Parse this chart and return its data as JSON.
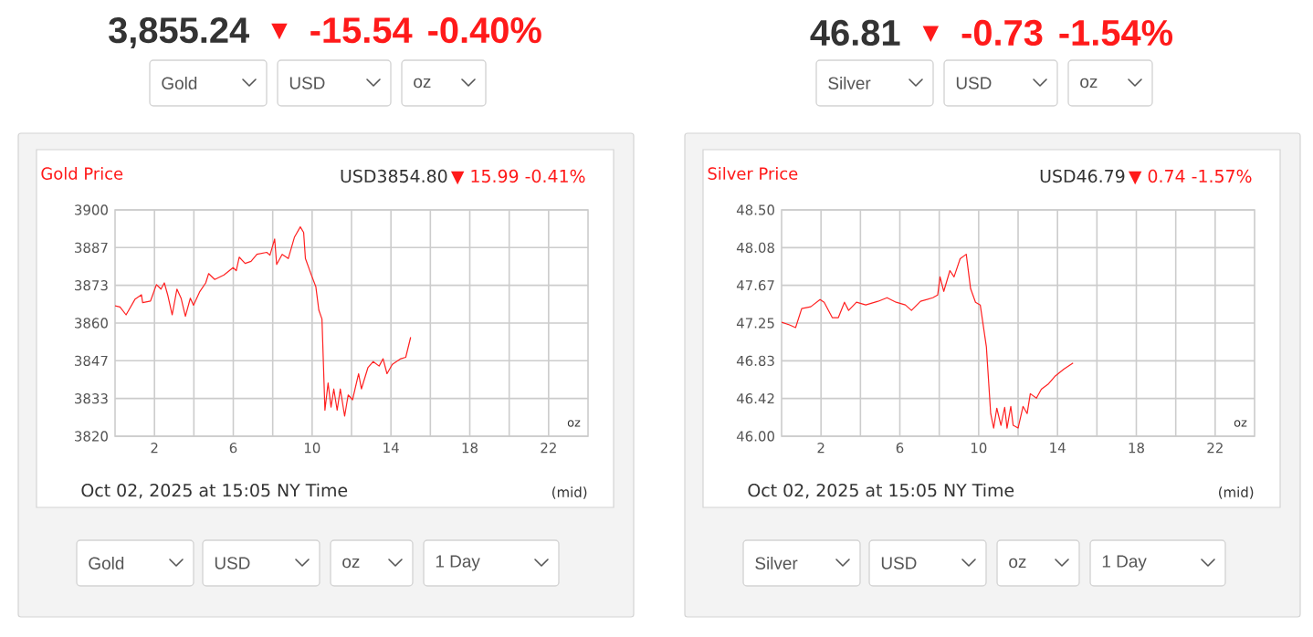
{
  "chart_data": [
    {
      "type": "line",
      "title": "Gold Price",
      "subtitle": "USD3854.80",
      "xlabel": "Oct 02, 2025 at 15:05 NY Time",
      "annotations": [
        "3,855.24",
        "▼",
        "-15.54",
        "-0.40%",
        "Gold",
        "USD",
        "oz",
        "▼ 15.99 -0.41%",
        "oz",
        "(mid)",
        "Gold",
        "USD",
        "oz",
        "1 Day"
      ],
      "color": "#ff2020",
      "grid": true,
      "xlim": [
        0,
        24
      ],
      "xticks": [
        2,
        {
          "value": 4,
          "label": null
        },
        6,
        {
          "value": 8,
          "label": null
        },
        10,
        {
          "value": 12,
          "label": null
        },
        14,
        {
          "value": 16,
          "label": null
        },
        18,
        {
          "value": 20,
          "label": null
        },
        22
      ],
      "ylim": [
        3820,
        3900
      ],
      "yticks": [
        3820,
        {
          "value": 3833.33,
          "label": "3833"
        },
        {
          "value": 3846.67,
          "label": "3847"
        },
        3860,
        {
          "value": 3873.33,
          "label": "3873"
        },
        {
          "value": 3886.67,
          "label": "3887"
        },
        3900
      ],
      "x": [
        0,
        0.25,
        0.56,
        1.02,
        1.34,
        1.4,
        1.8,
        2.1,
        2.33,
        2.5,
        2.67,
        2.9,
        3.14,
        3.35,
        3.57,
        3.82,
        3.98,
        4.29,
        4.6,
        4.75,
        5.06,
        5.53,
        5.99,
        6.15,
        6.3,
        6.6,
        6.9,
        7.2,
        7.7,
        7.86,
        8.1,
        8.2,
        8.48,
        8.79,
        9.1,
        9.4,
        9.57,
        9.66,
        9.97,
        10.19,
        10.34,
        10.5,
        10.65,
        10.81,
        10.96,
        11.1,
        11.27,
        11.43,
        11.65,
        11.83,
        12.05,
        12.36,
        12.5,
        12.83,
        13.1,
        13.4,
        13.6,
        13.8,
        14.07,
        14.5,
        14.75,
        15.0
      ],
      "values": [
        3866.1,
        3865.7,
        3862.9,
        3868.5,
        3870,
        3867.2,
        3867.8,
        3873.6,
        3872,
        3874.2,
        3870,
        3862.9,
        3872,
        3868.8,
        3862.4,
        3868.8,
        3866.3,
        3871,
        3874.2,
        3877.5,
        3875.4,
        3877,
        3879.6,
        3878.5,
        3883.3,
        3881.1,
        3881.8,
        3884.3,
        3885,
        3884,
        3889.7,
        3880.7,
        3884.3,
        3882.8,
        3890.3,
        3894,
        3892,
        3882.8,
        3876.8,
        3872.8,
        3864.6,
        3861.4,
        3829.2,
        3838.8,
        3830.3,
        3836.7,
        3829.2,
        3836.7,
        3827.1,
        3834.6,
        3832.9,
        3842.1,
        3836.7,
        3844.2,
        3846.4,
        3844.8,
        3847.4,
        3842.1,
        3845.4,
        3847.4,
        3847.9,
        3855
      ]
    },
    {
      "type": "line",
      "title": "Silver Price",
      "subtitle": "USD46.79",
      "xlabel": "Oct 02, 2025 at 15:05 NY Time",
      "annotations": [
        "46.81",
        "▼",
        "-0.73",
        "-1.54%",
        "Silver",
        "USD",
        "oz",
        "▼ 0.74 -1.57%",
        "oz",
        "(mid)",
        "Silver",
        "USD",
        "oz",
        "1 Day"
      ],
      "color": "#ff2020",
      "grid": true,
      "xlim": [
        0,
        24
      ],
      "xticks": [
        2,
        {
          "value": 4,
          "label": null
        },
        6,
        {
          "value": 8,
          "label": null
        },
        10,
        {
          "value": 12,
          "label": null
        },
        14,
        {
          "value": 16,
          "label": null
        },
        18,
        {
          "value": 20,
          "label": null
        },
        22
      ],
      "ylim": [
        46.0,
        48.5
      ],
      "yticks": [
        {
          "value": 46.0,
          "label": "46.00"
        },
        {
          "value": 46.4167,
          "label": "46.42"
        },
        {
          "value": 46.8333,
          "label": "46.83"
        },
        47.25,
        {
          "value": 47.6667,
          "label": "47.67"
        },
        {
          "value": 48.0833,
          "label": "48.08"
        },
        {
          "value": 48.5,
          "label": "48.50"
        }
      ],
      "x": [
        0,
        0.4,
        0.71,
        1.02,
        1.48,
        1.95,
        2.16,
        2.57,
        2.88,
        3.19,
        3.4,
        3.8,
        4.27,
        4.89,
        5.35,
        5.81,
        6.28,
        6.59,
        7.05,
        7.67,
        7.92,
        8.04,
        8.23,
        8.54,
        8.75,
        9.06,
        9.37,
        9.59,
        9.84,
        10.08,
        10.39,
        10.61,
        10.76,
        10.92,
        11.13,
        11.32,
        11.44,
        11.63,
        11.75,
        12.0,
        12.25,
        12.46,
        12.62,
        12.93,
        13.18,
        13.55,
        13.86,
        14.32,
        14.79
      ],
      "values": [
        47.26,
        47.23,
        47.2,
        47.41,
        47.43,
        47.51,
        47.48,
        47.31,
        47.31,
        47.48,
        47.39,
        47.48,
        47.45,
        47.49,
        47.53,
        47.48,
        47.45,
        47.39,
        47.49,
        47.53,
        47.56,
        47.76,
        47.6,
        47.83,
        47.76,
        47.96,
        48.01,
        47.63,
        47.48,
        47.45,
        46.99,
        46.25,
        46.09,
        46.31,
        46.12,
        46.32,
        46.09,
        46.33,
        46.12,
        46.09,
        46.33,
        46.25,
        46.47,
        46.42,
        46.52,
        46.58,
        46.66,
        46.74,
        46.81
      ]
    }
  ]
}
